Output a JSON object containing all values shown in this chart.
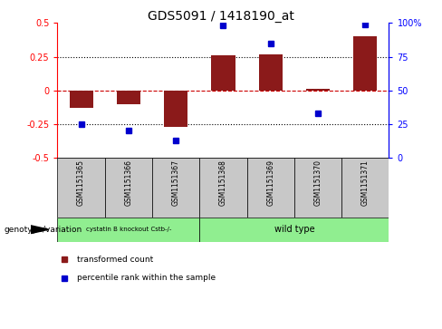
{
  "title": "GDS5091 / 1418190_at",
  "samples": [
    "GSM1151365",
    "GSM1151366",
    "GSM1151367",
    "GSM1151368",
    "GSM1151369",
    "GSM1151370",
    "GSM1151371"
  ],
  "bar_values": [
    -0.13,
    -0.1,
    -0.27,
    0.26,
    0.27,
    0.01,
    0.4
  ],
  "dot_values": [
    25,
    20,
    13,
    98,
    85,
    33,
    99
  ],
  "bar_color": "#8B1A1A",
  "dot_color": "#0000CD",
  "ylim_left": [
    -0.5,
    0.5
  ],
  "ylim_right": [
    0,
    100
  ],
  "yticks_left": [
    -0.5,
    -0.25,
    0,
    0.25,
    0.5
  ],
  "ytick_labels_left": [
    "-0.5",
    "-0.25",
    "0",
    "0.25",
    "0.5"
  ],
  "yticks_right": [
    0,
    25,
    50,
    75,
    100
  ],
  "ytick_labels_right": [
    "0",
    "25",
    "50",
    "75",
    "100%"
  ],
  "group0_label": "cystatin B knockout Cstb-/-",
  "group0_count": 3,
  "group1_label": "wild type",
  "group1_count": 4,
  "group_color": "#90EE90",
  "group_header": "genotype/variation",
  "legend_bar_label": "transformed count",
  "legend_dot_label": "percentile rank within the sample",
  "hline_zero_color": "#CC0000",
  "hline_dotted_color": "#000000",
  "sample_box_color": "#C8C8C8",
  "bar_width": 0.5,
  "dot_size": 5
}
